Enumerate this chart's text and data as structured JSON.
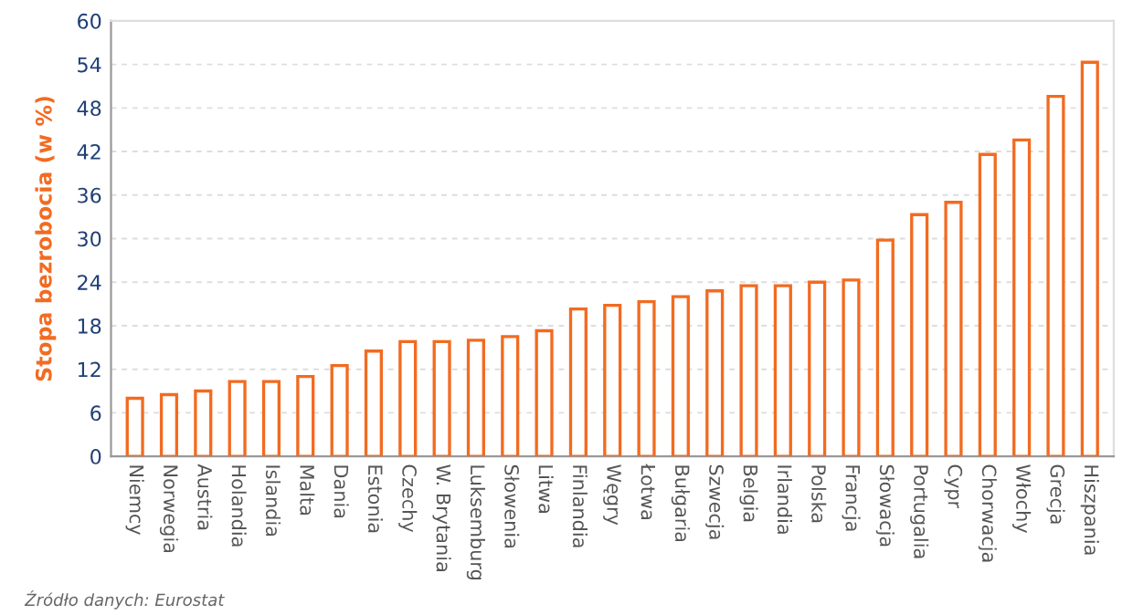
{
  "chart_data": {
    "type": "bar",
    "ylabel": "Stopa bezrobocia (w %)",
    "categories": [
      "Niemcy",
      "Norwegia",
      "Austria",
      "Holandia",
      "Islandia",
      "Malta",
      "Dania",
      "Estonia",
      "Czechy",
      "W. Brytania",
      "Luksemburg",
      "Słowenia",
      "Litwa",
      "Finlandia",
      "Węgry",
      "Łotwa",
      "Bułgaria",
      "Szwecja",
      "Belgia",
      "Irlandia",
      "Polska",
      "Francja",
      "Słowacja",
      "Portugalia",
      "Cypr",
      "Chorwacja",
      "Włochy",
      "Grecja",
      "Hiszpania"
    ],
    "values": [
      8.0,
      8.5,
      9.0,
      10.3,
      10.3,
      11.0,
      12.5,
      14.5,
      15.8,
      15.8,
      16.0,
      16.5,
      17.3,
      20.3,
      20.8,
      21.3,
      22.0,
      22.8,
      23.5,
      23.5,
      24.0,
      24.3,
      29.8,
      33.3,
      35.0,
      41.6,
      43.6,
      49.6,
      54.3
    ],
    "color": "#f26b21",
    "ylim": [
      0,
      60
    ],
    "yticks": [
      0,
      6,
      12,
      18,
      24,
      30,
      36,
      42,
      48,
      54,
      60
    ],
    "grid": "y",
    "annotations": [
      "Źródło danych: Eurostat"
    ]
  }
}
